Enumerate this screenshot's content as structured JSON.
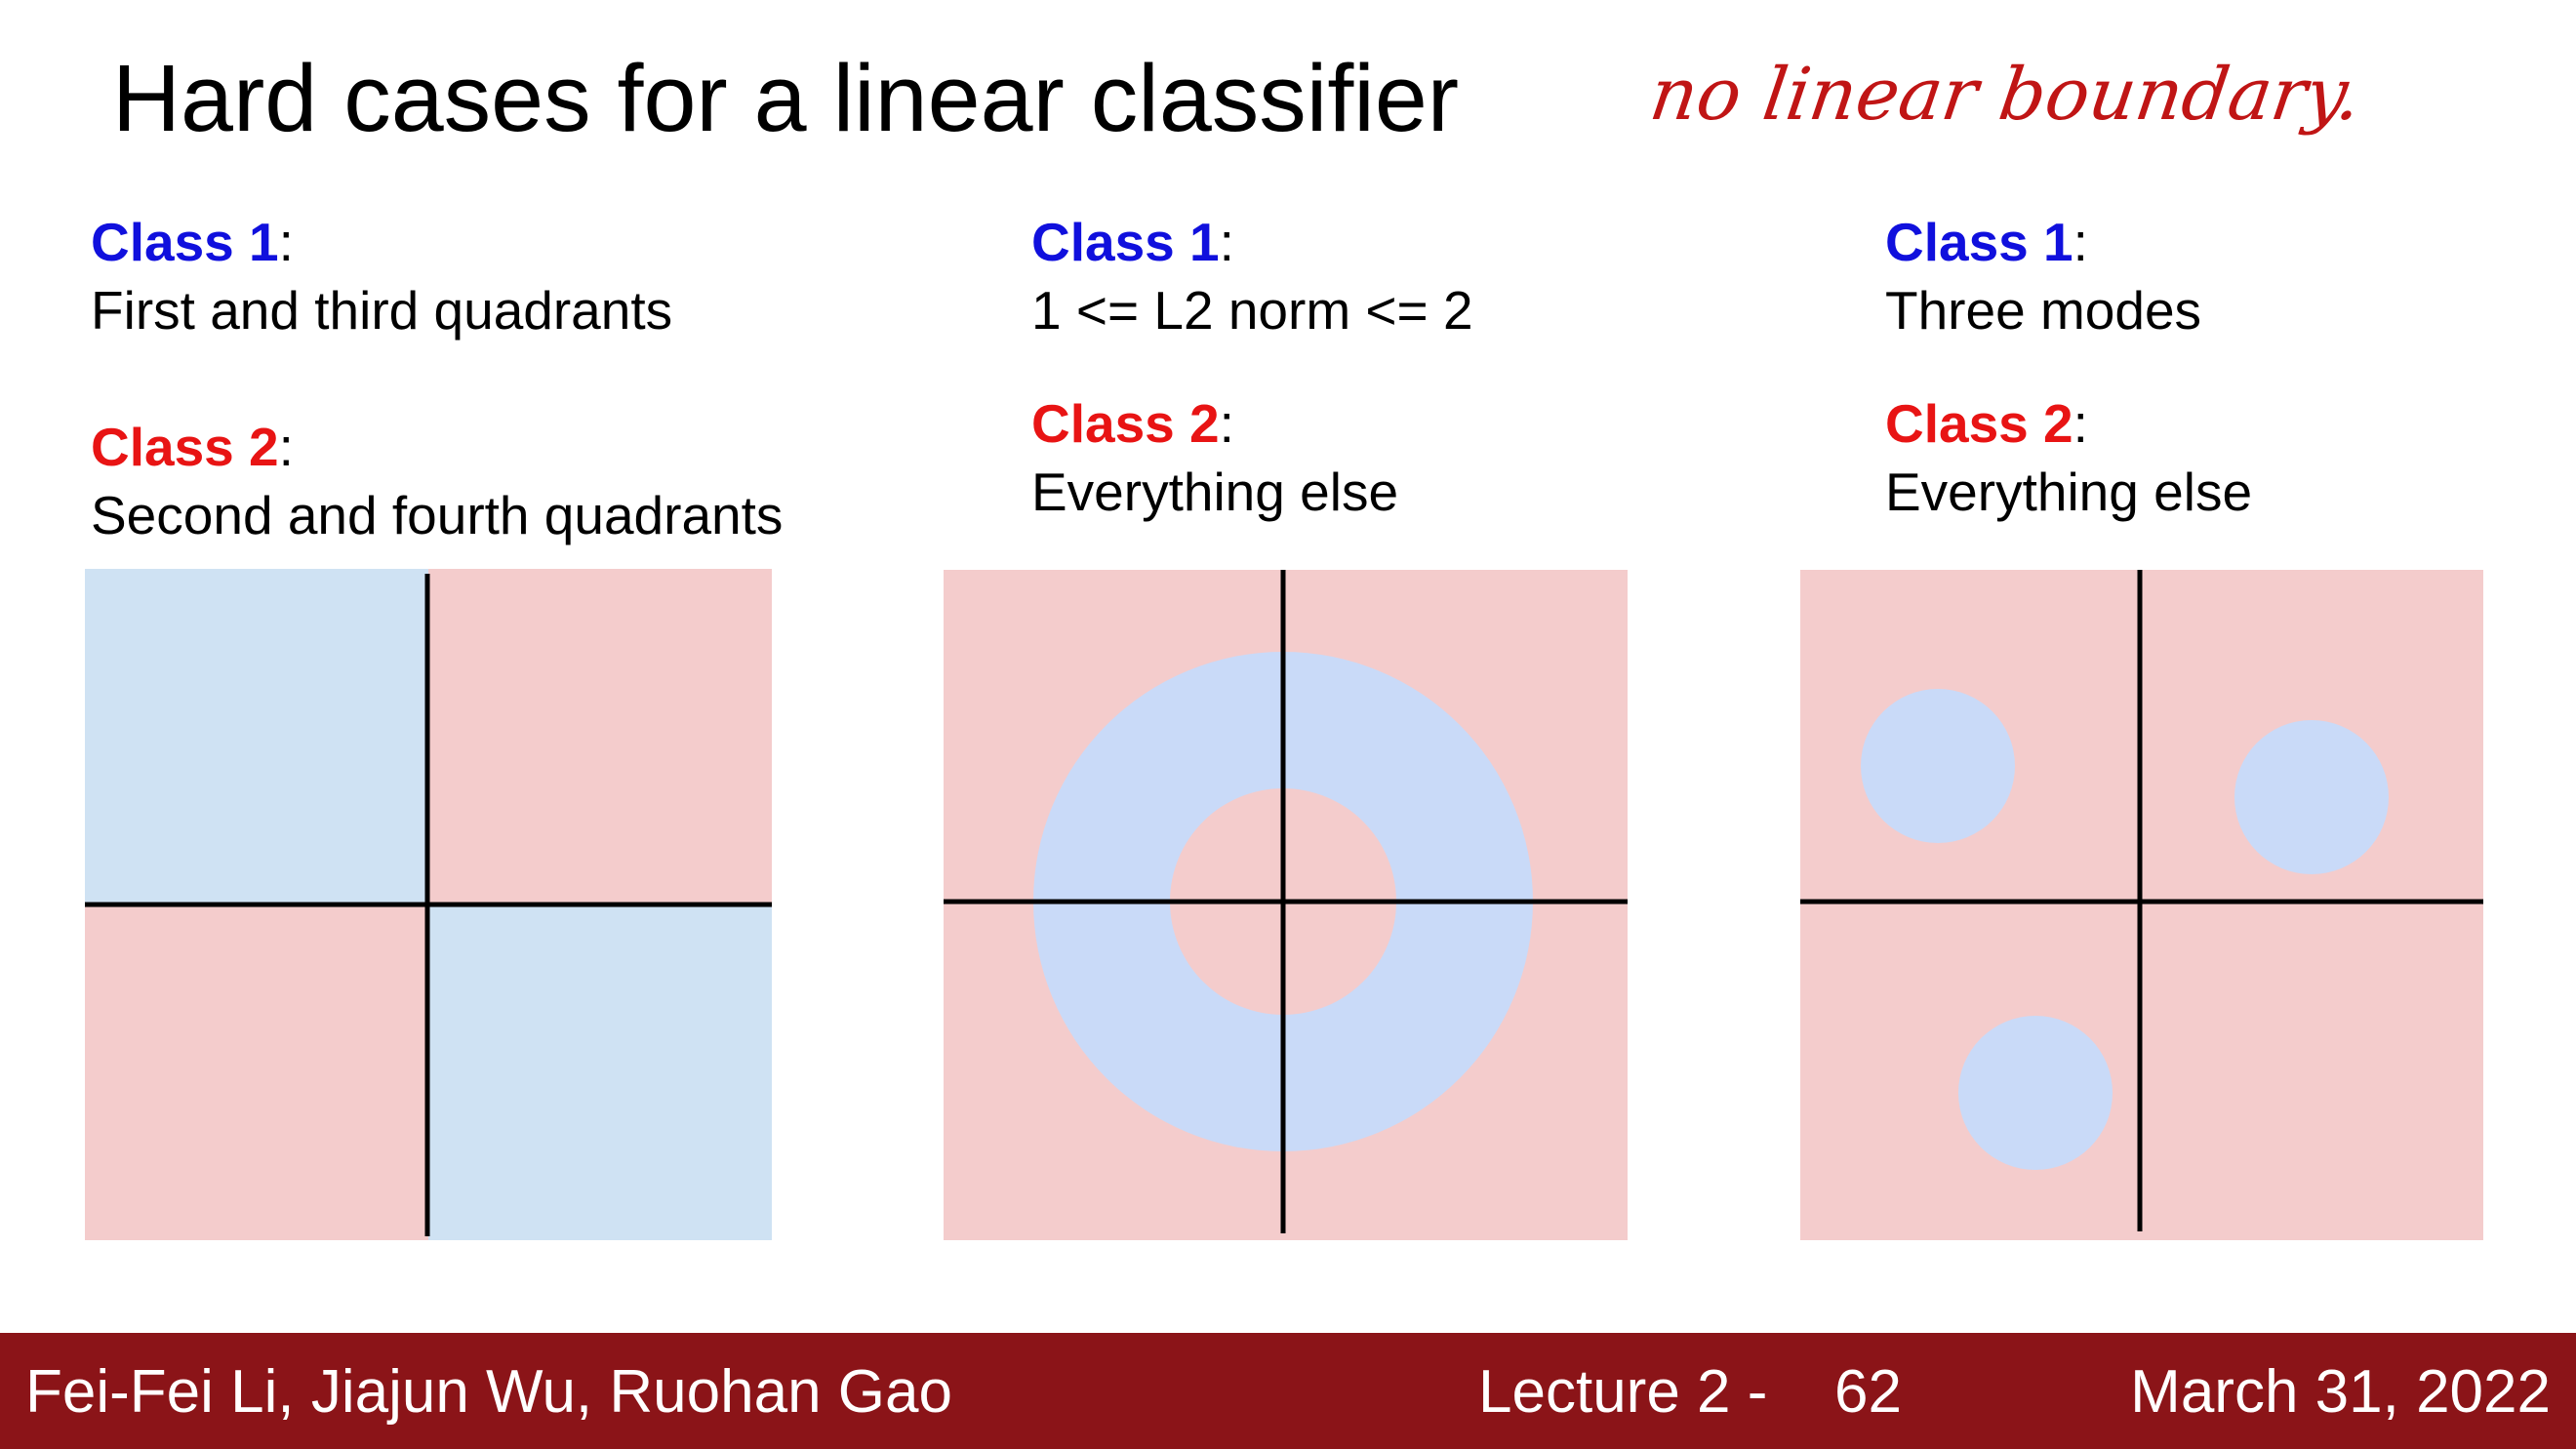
{
  "slide": {
    "title": "Hard cases for a linear classifier",
    "annotation": "no linear boundary."
  },
  "cases": [
    {
      "class1_label": "Class 1",
      "class1_desc": "First and third quadrants",
      "class2_label": "Class 2",
      "class2_desc": "Second and fourth quadrants"
    },
    {
      "class1_label": "Class 1",
      "class1_desc": "1 <= L2 norm <= 2",
      "class2_label": "Class 2",
      "class2_desc": "Everything else"
    },
    {
      "class1_label": "Class 1",
      "class1_desc": "Three modes",
      "class2_label": "Class 2",
      "class2_desc": "Everything else"
    }
  ],
  "colors": {
    "class1_text": "#1010dd",
    "class2_text": "#e81414",
    "class1_region": "#cfe2f3",
    "class1_region_alt": "#c9daf8",
    "class2_region": "#f4cccc",
    "axis": "#000000",
    "footer_bg": "#8b1418"
  },
  "footer": {
    "authors": "Fei-Fei Li, Jiajun Wu, Ruohan Gao",
    "lecture": "Lecture 2 -",
    "page": "62",
    "date": "March 31, 2022"
  }
}
